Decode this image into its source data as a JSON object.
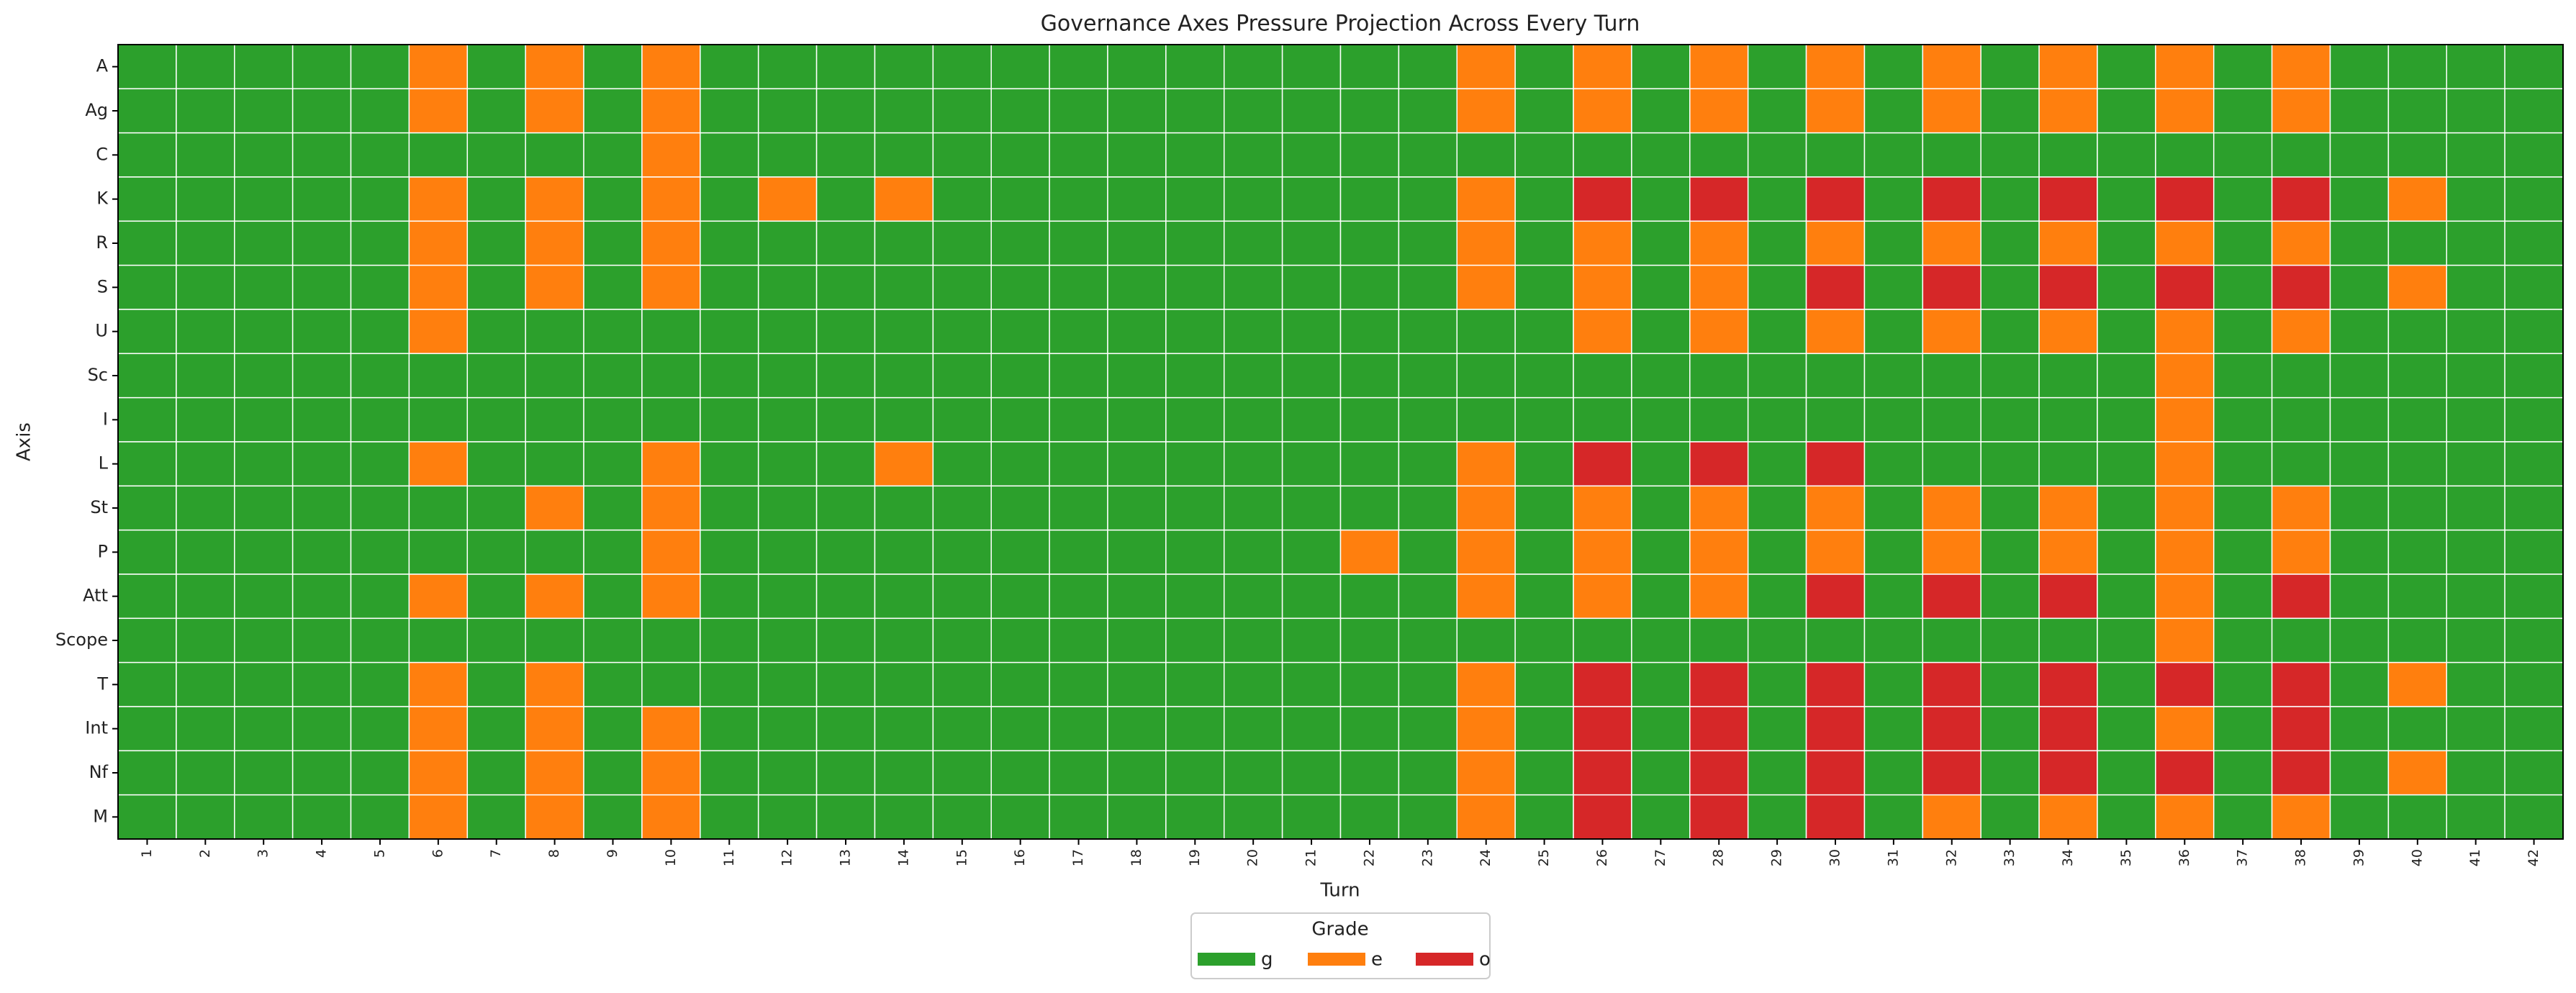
{
  "chart_data": {
    "type": "heatmap",
    "title": "Governance Axes Pressure Projection Across Every Turn",
    "xlabel": "Turn",
    "ylabel": "Axis",
    "x": [
      1,
      2,
      3,
      4,
      5,
      6,
      7,
      8,
      9,
      10,
      11,
      12,
      13,
      14,
      15,
      16,
      17,
      18,
      19,
      20,
      21,
      22,
      23,
      24,
      25,
      26,
      27,
      28,
      29,
      30,
      31,
      32,
      33,
      34,
      35,
      36,
      37,
      38,
      39,
      40,
      41,
      42
    ],
    "rows": [
      "A",
      "Ag",
      "C",
      "K",
      "R",
      "S",
      "U",
      "Sc",
      "I",
      "L",
      "St",
      "P",
      "Att",
      "Scope",
      "T",
      "Int",
      "Nf",
      "M"
    ],
    "legend_title": "Grade",
    "grades": [
      "g",
      "e",
      "o"
    ],
    "colors": [
      "#2ca02c",
      "#ff7f0e",
      "#d62728"
    ],
    "values": [
      [
        0,
        0,
        0,
        0,
        0,
        1,
        0,
        1,
        0,
        1,
        0,
        0,
        0,
        0,
        0,
        0,
        0,
        0,
        0,
        0,
        0,
        0,
        0,
        1,
        0,
        1,
        0,
        1,
        0,
        1,
        0,
        1,
        0,
        1,
        0,
        1,
        0,
        1,
        0,
        0,
        0,
        0
      ],
      [
        0,
        0,
        0,
        0,
        0,
        1,
        0,
        1,
        0,
        1,
        0,
        0,
        0,
        0,
        0,
        0,
        0,
        0,
        0,
        0,
        0,
        0,
        0,
        1,
        0,
        1,
        0,
        1,
        0,
        1,
        0,
        1,
        0,
        1,
        0,
        1,
        0,
        1,
        0,
        0,
        0,
        0
      ],
      [
        0,
        0,
        0,
        0,
        0,
        0,
        0,
        0,
        0,
        1,
        0,
        0,
        0,
        0,
        0,
        0,
        0,
        0,
        0,
        0,
        0,
        0,
        0,
        0,
        0,
        0,
        0,
        0,
        0,
        0,
        0,
        0,
        0,
        0,
        0,
        0,
        0,
        0,
        0,
        0,
        0,
        0
      ],
      [
        0,
        0,
        0,
        0,
        0,
        1,
        0,
        1,
        0,
        1,
        0,
        1,
        0,
        1,
        0,
        0,
        0,
        0,
        0,
        0,
        0,
        0,
        0,
        1,
        0,
        2,
        0,
        2,
        0,
        2,
        0,
        2,
        0,
        2,
        0,
        2,
        0,
        2,
        0,
        1,
        0,
        0
      ],
      [
        0,
        0,
        0,
        0,
        0,
        1,
        0,
        1,
        0,
        1,
        0,
        0,
        0,
        0,
        0,
        0,
        0,
        0,
        0,
        0,
        0,
        0,
        0,
        1,
        0,
        1,
        0,
        1,
        0,
        1,
        0,
        1,
        0,
        1,
        0,
        1,
        0,
        1,
        0,
        0,
        0,
        0
      ],
      [
        0,
        0,
        0,
        0,
        0,
        1,
        0,
        1,
        0,
        1,
        0,
        0,
        0,
        0,
        0,
        0,
        0,
        0,
        0,
        0,
        0,
        0,
        0,
        1,
        0,
        1,
        0,
        1,
        0,
        2,
        0,
        2,
        0,
        2,
        0,
        2,
        0,
        2,
        0,
        1,
        0,
        0
      ],
      [
        0,
        0,
        0,
        0,
        0,
        1,
        0,
        0,
        0,
        0,
        0,
        0,
        0,
        0,
        0,
        0,
        0,
        0,
        0,
        0,
        0,
        0,
        0,
        0,
        0,
        1,
        0,
        1,
        0,
        1,
        0,
        1,
        0,
        1,
        0,
        1,
        0,
        1,
        0,
        0,
        0,
        0
      ],
      [
        0,
        0,
        0,
        0,
        0,
        0,
        0,
        0,
        0,
        0,
        0,
        0,
        0,
        0,
        0,
        0,
        0,
        0,
        0,
        0,
        0,
        0,
        0,
        0,
        0,
        0,
        0,
        0,
        0,
        0,
        0,
        0,
        0,
        0,
        0,
        1,
        0,
        0,
        0,
        0,
        0,
        0
      ],
      [
        0,
        0,
        0,
        0,
        0,
        0,
        0,
        0,
        0,
        0,
        0,
        0,
        0,
        0,
        0,
        0,
        0,
        0,
        0,
        0,
        0,
        0,
        0,
        0,
        0,
        0,
        0,
        0,
        0,
        0,
        0,
        0,
        0,
        0,
        0,
        1,
        0,
        0,
        0,
        0,
        0,
        0
      ],
      [
        0,
        0,
        0,
        0,
        0,
        1,
        0,
        0,
        0,
        1,
        0,
        0,
        0,
        1,
        0,
        0,
        0,
        0,
        0,
        0,
        0,
        0,
        0,
        1,
        0,
        2,
        0,
        2,
        0,
        2,
        0,
        0,
        0,
        0,
        0,
        1,
        0,
        0,
        0,
        0,
        0,
        0
      ],
      [
        0,
        0,
        0,
        0,
        0,
        0,
        0,
        1,
        0,
        1,
        0,
        0,
        0,
        0,
        0,
        0,
        0,
        0,
        0,
        0,
        0,
        0,
        0,
        1,
        0,
        1,
        0,
        1,
        0,
        1,
        0,
        1,
        0,
        1,
        0,
        1,
        0,
        1,
        0,
        0,
        0,
        0
      ],
      [
        0,
        0,
        0,
        0,
        0,
        0,
        0,
        0,
        0,
        1,
        0,
        0,
        0,
        0,
        0,
        0,
        0,
        0,
        0,
        0,
        0,
        1,
        0,
        1,
        0,
        1,
        0,
        1,
        0,
        1,
        0,
        1,
        0,
        1,
        0,
        1,
        0,
        1,
        0,
        0,
        0,
        0
      ],
      [
        0,
        0,
        0,
        0,
        0,
        1,
        0,
        1,
        0,
        1,
        0,
        0,
        0,
        0,
        0,
        0,
        0,
        0,
        0,
        0,
        0,
        0,
        0,
        1,
        0,
        1,
        0,
        1,
        0,
        2,
        0,
        2,
        0,
        2,
        0,
        1,
        0,
        2,
        0,
        0,
        0,
        0
      ],
      [
        0,
        0,
        0,
        0,
        0,
        0,
        0,
        0,
        0,
        0,
        0,
        0,
        0,
        0,
        0,
        0,
        0,
        0,
        0,
        0,
        0,
        0,
        0,
        0,
        0,
        0,
        0,
        0,
        0,
        0,
        0,
        0,
        0,
        0,
        0,
        1,
        0,
        0,
        0,
        0,
        0,
        0
      ],
      [
        0,
        0,
        0,
        0,
        0,
        1,
        0,
        1,
        0,
        0,
        0,
        0,
        0,
        0,
        0,
        0,
        0,
        0,
        0,
        0,
        0,
        0,
        0,
        1,
        0,
        2,
        0,
        2,
        0,
        2,
        0,
        2,
        0,
        2,
        0,
        2,
        0,
        2,
        0,
        1,
        0,
        0
      ],
      [
        0,
        0,
        0,
        0,
        0,
        1,
        0,
        1,
        0,
        1,
        0,
        0,
        0,
        0,
        0,
        0,
        0,
        0,
        0,
        0,
        0,
        0,
        0,
        1,
        0,
        2,
        0,
        2,
        0,
        2,
        0,
        2,
        0,
        2,
        0,
        1,
        0,
        2,
        0,
        0,
        0,
        0
      ],
      [
        0,
        0,
        0,
        0,
        0,
        1,
        0,
        1,
        0,
        1,
        0,
        0,
        0,
        0,
        0,
        0,
        0,
        0,
        0,
        0,
        0,
        0,
        0,
        1,
        0,
        2,
        0,
        2,
        0,
        2,
        0,
        2,
        0,
        2,
        0,
        2,
        0,
        2,
        0,
        1,
        0,
        0
      ],
      [
        0,
        0,
        0,
        0,
        0,
        1,
        0,
        1,
        0,
        1,
        0,
        0,
        0,
        0,
        0,
        0,
        0,
        0,
        0,
        0,
        0,
        0,
        0,
        1,
        0,
        2,
        0,
        2,
        0,
        2,
        0,
        1,
        0,
        1,
        0,
        1,
        0,
        1,
        0,
        0,
        0,
        0
      ]
    ]
  }
}
